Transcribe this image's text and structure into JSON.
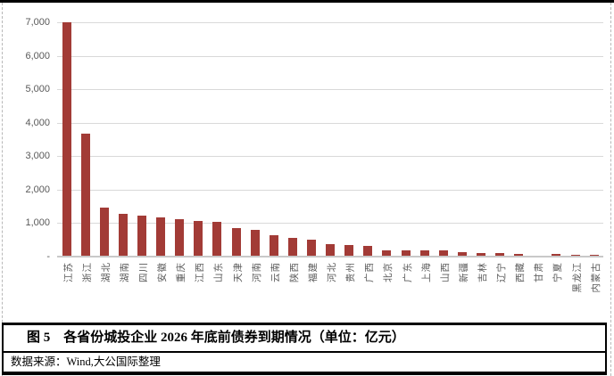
{
  "figure": {
    "label": "图 5",
    "title": "图 5　各省份城投企业 2026 年底前债券到期情况（单位：亿元）",
    "source": "数据来源：Wind,大公国际整理"
  },
  "chart_data": {
    "type": "bar",
    "title": "各省份城投企业 2026 年底前债券到期情况",
    "unit": "亿元",
    "categories": [
      "江苏",
      "浙江",
      "湖北",
      "湖南",
      "四川",
      "安徽",
      "重庆",
      "江西",
      "山东",
      "天津",
      "河南",
      "云南",
      "陕西",
      "福建",
      "河北",
      "贵州",
      "广西",
      "北京",
      "广东",
      "上海",
      "山西",
      "新疆",
      "吉林",
      "辽宁",
      "西藏",
      "甘肃",
      "宁夏",
      "黑龙江",
      "内蒙古"
    ],
    "values": [
      7000,
      3670,
      1460,
      1280,
      1230,
      1170,
      1110,
      1070,
      1040,
      850,
      800,
      640,
      560,
      510,
      370,
      350,
      320,
      190,
      188,
      183,
      178,
      130,
      110,
      100,
      90,
      10,
      80,
      60,
      55
    ],
    "ylim": [
      0,
      7000
    ],
    "yticks": [
      {
        "value": 7000,
        "label": "7,000"
      },
      {
        "value": 6000,
        "label": "6,000"
      },
      {
        "value": 5000,
        "label": "5,000"
      },
      {
        "value": 4000,
        "label": "4,000"
      },
      {
        "value": 3000,
        "label": "3,000"
      },
      {
        "value": 2000,
        "label": "2,000"
      },
      {
        "value": 1000,
        "label": "1,000"
      },
      {
        "value": 0,
        "label": "-"
      }
    ],
    "grid": true,
    "legend": "none",
    "bar_color": "#a23b36",
    "gridline_color": "#d9d9d9",
    "axis_text_color": "#595959"
  }
}
